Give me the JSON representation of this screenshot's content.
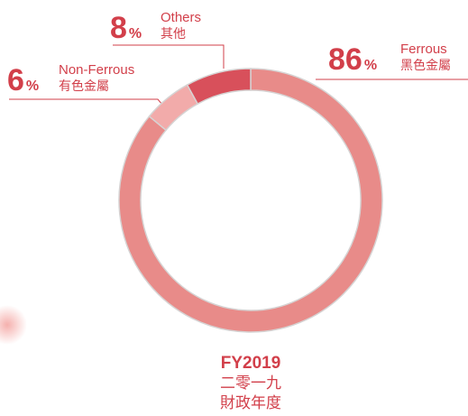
{
  "chart_data": {
    "type": "pie",
    "categories": [
      "Ferrous",
      "Non-Ferrous",
      "Others"
    ],
    "categories_zh": [
      "黑色金屬",
      "有色金屬",
      "其他"
    ],
    "values": [
      86,
      6,
      8
    ],
    "unit": "%",
    "colors": [
      "#e88b89",
      "#f2abaa",
      "#d8505b"
    ],
    "center_label": [
      "FY2019",
      "二零一九",
      "財政年度"
    ]
  }
}
